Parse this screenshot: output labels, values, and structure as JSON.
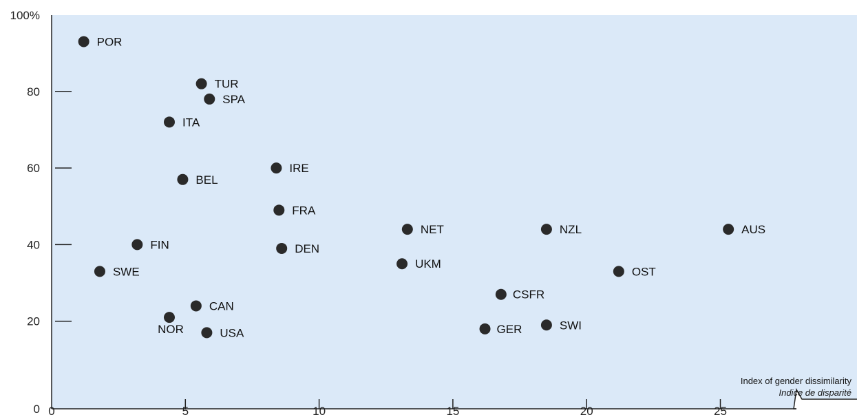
{
  "chart_data": {
    "type": "scatter",
    "xlabel": "Index of gender dissimilarity",
    "xlabel_secondary": "Indice de disparité",
    "ylabel": "",
    "xlim": [
      0,
      30
    ],
    "ylim": [
      0,
      100
    ],
    "x_ticks": [
      0,
      5,
      10,
      15,
      20,
      25
    ],
    "y_ticks": [
      0,
      20,
      40,
      60,
      80,
      100
    ],
    "y_tick_labels": [
      "0",
      "20",
      "40",
      "60",
      "80",
      "100%"
    ],
    "grid": false,
    "colors": {
      "background": "#dbe9f8",
      "point": "#2a2a2a"
    },
    "points": [
      {
        "label": "POR",
        "x": 1.2,
        "y": 93
      },
      {
        "label": "TUR",
        "x": 5.6,
        "y": 82
      },
      {
        "label": "SPA",
        "x": 5.9,
        "y": 78
      },
      {
        "label": "ITA",
        "x": 4.4,
        "y": 72
      },
      {
        "label": "IRE",
        "x": 8.4,
        "y": 60
      },
      {
        "label": "BEL",
        "x": 4.9,
        "y": 57
      },
      {
        "label": "FRA",
        "x": 8.5,
        "y": 49
      },
      {
        "label": "NET",
        "x": 13.3,
        "y": 44
      },
      {
        "label": "NZL",
        "x": 18.5,
        "y": 44
      },
      {
        "label": "AUS",
        "x": 25.3,
        "y": 44
      },
      {
        "label": "FIN",
        "x": 3.2,
        "y": 40
      },
      {
        "label": "DEN",
        "x": 8.6,
        "y": 39
      },
      {
        "label": "UKM",
        "x": 13.1,
        "y": 35
      },
      {
        "label": "SWE",
        "x": 1.8,
        "y": 33
      },
      {
        "label": "OST",
        "x": 21.2,
        "y": 33
      },
      {
        "label": "CSFR",
        "x": 16.8,
        "y": 27
      },
      {
        "label": "CAN",
        "x": 5.4,
        "y": 24
      },
      {
        "label": "NOR",
        "x": 4.4,
        "y": 21
      },
      {
        "label": "SWI",
        "x": 18.5,
        "y": 19
      },
      {
        "label": "GER",
        "x": 16.2,
        "y": 18
      },
      {
        "label": "USA",
        "x": 5.8,
        "y": 17
      }
    ]
  }
}
